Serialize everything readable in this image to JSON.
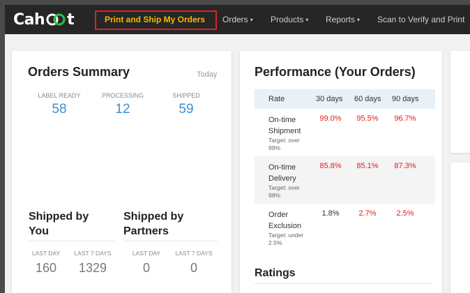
{
  "nav": {
    "brand": "Cahoot",
    "brand_left": "Cah",
    "brand_right": "t",
    "items": [
      {
        "label": "Print and Ship My Orders",
        "active": true
      },
      {
        "label": "Orders",
        "dropdown": true
      },
      {
        "label": "Products",
        "dropdown": true
      },
      {
        "label": "Reports",
        "dropdown": true
      },
      {
        "label": "Scan to Verify and Print",
        "dropdown": false
      }
    ],
    "caret": "▾",
    "highlight_color": "#e02020",
    "active_color": "#f5b800"
  },
  "orders_summary": {
    "title": "Orders Summary",
    "period": "Today",
    "stats": [
      {
        "label": "LABEL READY",
        "value": "58"
      },
      {
        "label": "PROCESSING",
        "value": "12"
      },
      {
        "label": "SHIPPED",
        "value": "59"
      }
    ],
    "shipped_by_you": {
      "title": "Shipped by You",
      "title_line1": "Shipped by",
      "title_line2": "You",
      "stats": [
        {
          "label": "LAST DAY",
          "value": "160"
        },
        {
          "label": "LAST 7 DAYS",
          "value": "1329"
        }
      ]
    },
    "shipped_by_partners": {
      "title": "Shipped by Partners",
      "title_line1": "Shipped by",
      "title_line2": "Partners",
      "stats": [
        {
          "label": "LAST DAY",
          "value": "0"
        },
        {
          "label": "LAST 7 DAYS",
          "value": "0"
        }
      ]
    }
  },
  "performance": {
    "title": "Performance (Your Orders)",
    "columns": [
      "Rate",
      "30 days",
      "60 days",
      "90 days"
    ],
    "rows": [
      {
        "name_line1": "On-time",
        "name_line2": "Shipment",
        "target_line1": "Target: over",
        "target_line2": "99%",
        "values": [
          "99.0%",
          "95.5%",
          "96.7%"
        ],
        "red": [
          true,
          true,
          true
        ]
      },
      {
        "name_line1": "On-time",
        "name_line2": "Delivery",
        "target_line1": "Target: over",
        "target_line2": "98%",
        "values": [
          "85.8%",
          "85.1%",
          "87.3%"
        ],
        "red": [
          true,
          true,
          true
        ]
      },
      {
        "name_line1": "Order",
        "name_line2": "Exclusion",
        "target_line1": "Target: under",
        "target_line2": "2.5%",
        "values": [
          "1.8%",
          "2.7%",
          "2.5%"
        ],
        "red": [
          false,
          true,
          true
        ]
      }
    ],
    "ratings_title": "Ratings"
  }
}
